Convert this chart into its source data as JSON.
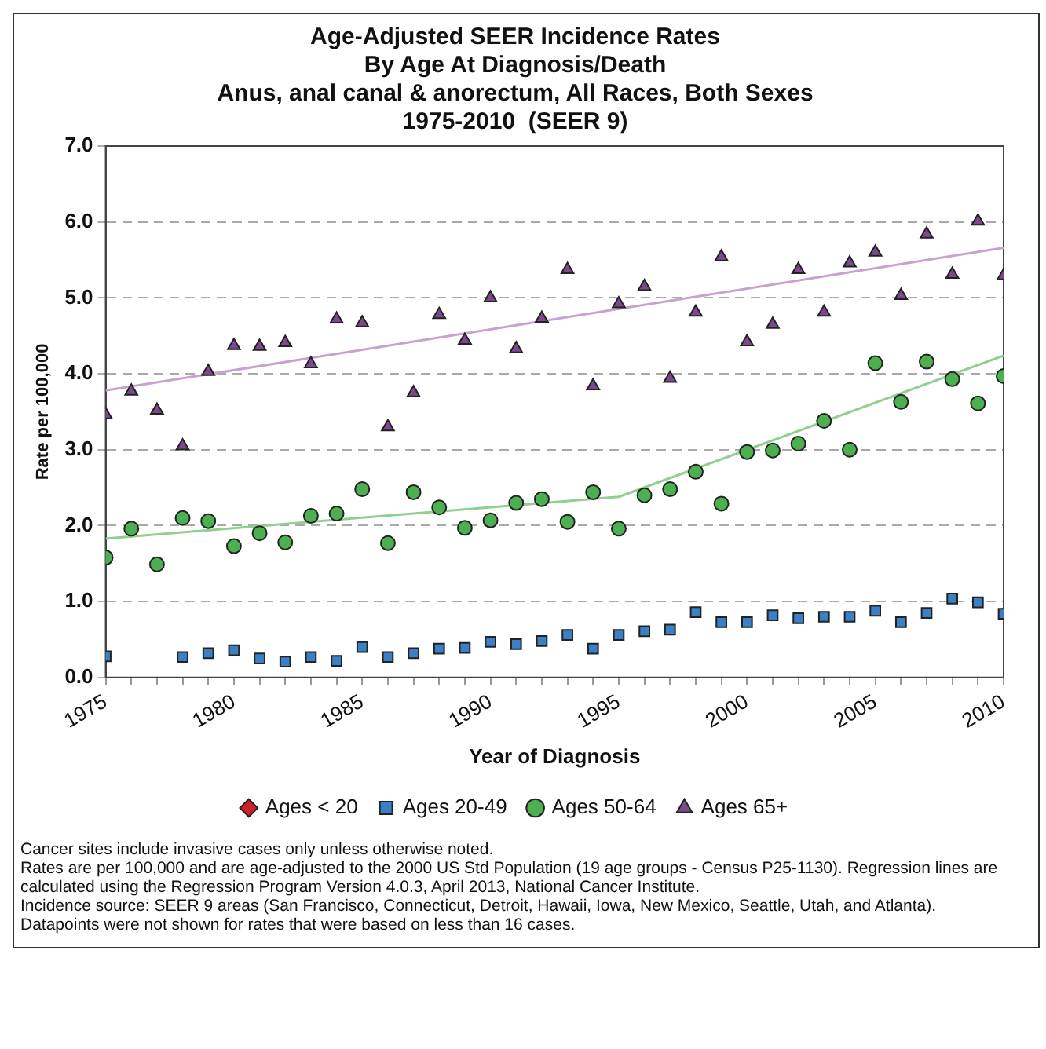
{
  "chart_data": {
    "type": "scatter",
    "title": "Age-Adjusted SEER Incidence Rates\nBy Age At Diagnosis/Death\nAnus, anal canal & anorectum, All Races, Both Sexes\n1975-2010  (SEER 9)",
    "xlabel": "Year of Diagnosis",
    "ylabel": "Rate per 100,000",
    "x": [
      1975,
      1976,
      1977,
      1978,
      1979,
      1980,
      1981,
      1982,
      1983,
      1984,
      1985,
      1986,
      1987,
      1988,
      1989,
      1990,
      1991,
      1992,
      1993,
      1994,
      1995,
      1996,
      1997,
      1998,
      1999,
      2000,
      2001,
      2002,
      2003,
      2004,
      2005,
      2006,
      2007,
      2008,
      2009,
      2010
    ],
    "series": [
      {
        "name": "Ages < 20",
        "marker": "diamond",
        "color": "#d0202a",
        "values": [
          null,
          null,
          null,
          null,
          null,
          null,
          null,
          null,
          null,
          null,
          null,
          null,
          null,
          null,
          null,
          null,
          null,
          null,
          null,
          null,
          null,
          null,
          null,
          null,
          null,
          null,
          null,
          null,
          null,
          null,
          null,
          null,
          null,
          null,
          null,
          null
        ]
      },
      {
        "name": "Ages 20-49",
        "marker": "square",
        "color": "#3b7fc4",
        "values": [
          0.28,
          null,
          null,
          0.27,
          0.32,
          0.36,
          0.25,
          0.21,
          0.27,
          0.22,
          0.4,
          0.27,
          0.32,
          0.38,
          0.39,
          0.47,
          0.44,
          0.48,
          0.56,
          0.38,
          0.56,
          0.61,
          0.63,
          0.86,
          0.73,
          0.73,
          0.82,
          0.78,
          0.8,
          0.8,
          0.88,
          0.73,
          0.85,
          1.04,
          0.99,
          0.84
        ]
      },
      {
        "name": "Ages 50-64",
        "marker": "circle",
        "color": "#4caf50",
        "values": [
          1.58,
          1.96,
          1.49,
          2.1,
          2.06,
          1.73,
          1.9,
          1.78,
          2.13,
          2.16,
          2.48,
          1.77,
          2.44,
          2.24,
          1.97,
          2.07,
          2.3,
          2.35,
          2.05,
          2.44,
          1.96,
          2.4,
          2.48,
          2.71,
          2.29,
          2.97,
          2.99,
          3.08,
          3.38,
          3.0,
          4.14,
          3.63,
          4.16,
          3.93,
          3.61,
          3.97
        ]
      },
      {
        "name": "Ages 65+",
        "marker": "triangle",
        "color": "#7b4a8c",
        "values": [
          3.46,
          3.77,
          3.52,
          3.05,
          4.03,
          4.37,
          4.36,
          4.41,
          4.13,
          4.72,
          4.67,
          3.3,
          3.75,
          4.78,
          4.44,
          5.0,
          4.33,
          4.73,
          5.37,
          3.84,
          4.92,
          5.15,
          3.94,
          4.81,
          5.54,
          4.42,
          4.65,
          5.37,
          4.81,
          5.46,
          5.6,
          5.03,
          5.84,
          5.31,
          6.01,
          5.29
        ]
      },
      {
        "type": "line",
        "marker": "none",
        "color": "#8fcf8f",
        "x": [
          1975,
          1995,
          2010
        ],
        "values": [
          1.83,
          2.38,
          4.24
        ]
      },
      {
        "type": "line",
        "marker": "none",
        "color": "#c9a0d2",
        "x": [
          1975,
          2010
        ],
        "values": [
          3.78,
          5.66
        ]
      }
    ],
    "xlim": [
      1975,
      2010
    ],
    "xticks": [
      1975,
      {
        "value": 1976,
        "label": null
      },
      {
        "value": 1977,
        "label": null
      },
      {
        "value": 1978,
        "label": null
      },
      {
        "value": 1979,
        "label": null
      },
      1980,
      {
        "value": 1981,
        "label": null
      },
      {
        "value": 1982,
        "label": null
      },
      {
        "value": 1983,
        "label": null
      },
      {
        "value": 1984,
        "label": null
      },
      1985,
      {
        "value": 1986,
        "label": null
      },
      {
        "value": 1987,
        "label": null
      },
      {
        "value": 1988,
        "label": null
      },
      {
        "value": 1989,
        "label": null
      },
      1990,
      {
        "value": 1991,
        "label": null
      },
      {
        "value": 1992,
        "label": null
      },
      {
        "value": 1993,
        "label": null
      },
      {
        "value": 1994,
        "label": null
      },
      1995,
      {
        "value": 1996,
        "label": null
      },
      {
        "value": 1997,
        "label": null
      },
      {
        "value": 1998,
        "label": null
      },
      {
        "value": 1999,
        "label": null
      },
      2000,
      {
        "value": 2001,
        "label": null
      },
      {
        "value": 2002,
        "label": null
      },
      {
        "value": 2003,
        "label": null
      },
      {
        "value": 2004,
        "label": null
      },
      2005,
      {
        "value": 2006,
        "label": null
      },
      {
        "value": 2007,
        "label": null
      },
      {
        "value": 2008,
        "label": null
      },
      {
        "value": 2009,
        "label": null
      },
      2010
    ],
    "ylim": [
      0,
      7
    ],
    "yticks": [
      {
        "value": 0,
        "label": "0.0"
      },
      {
        "value": 1,
        "label": "1.0"
      },
      {
        "value": 2,
        "label": "2.0"
      },
      {
        "value": 3,
        "label": "3.0"
      },
      {
        "value": 4,
        "label": "4.0"
      },
      {
        "value": 5,
        "label": "5.0"
      },
      {
        "value": 6,
        "label": "6.0"
      },
      {
        "value": 7,
        "label": "7.0"
      }
    ],
    "grid": "y",
    "legend": "bottom",
    "annotations": [
      "Cancer sites include invasive cases only unless otherwise noted.",
      "Rates are per 100,000 and are age-adjusted to the 2000 US Std Population (19 age groups - Census P25-1130). Regression lines are calculated using the Regression Program Version 4.0.3, April 2013, National Cancer Institute.",
      "Incidence source: SEER 9 areas (San Francisco, Connecticut, Detroit, Hawaii, Iowa, New Mexico, Seattle, Utah, and Atlanta).",
      "Datapoints were not shown for rates that were based on less than 16 cases."
    ]
  }
}
